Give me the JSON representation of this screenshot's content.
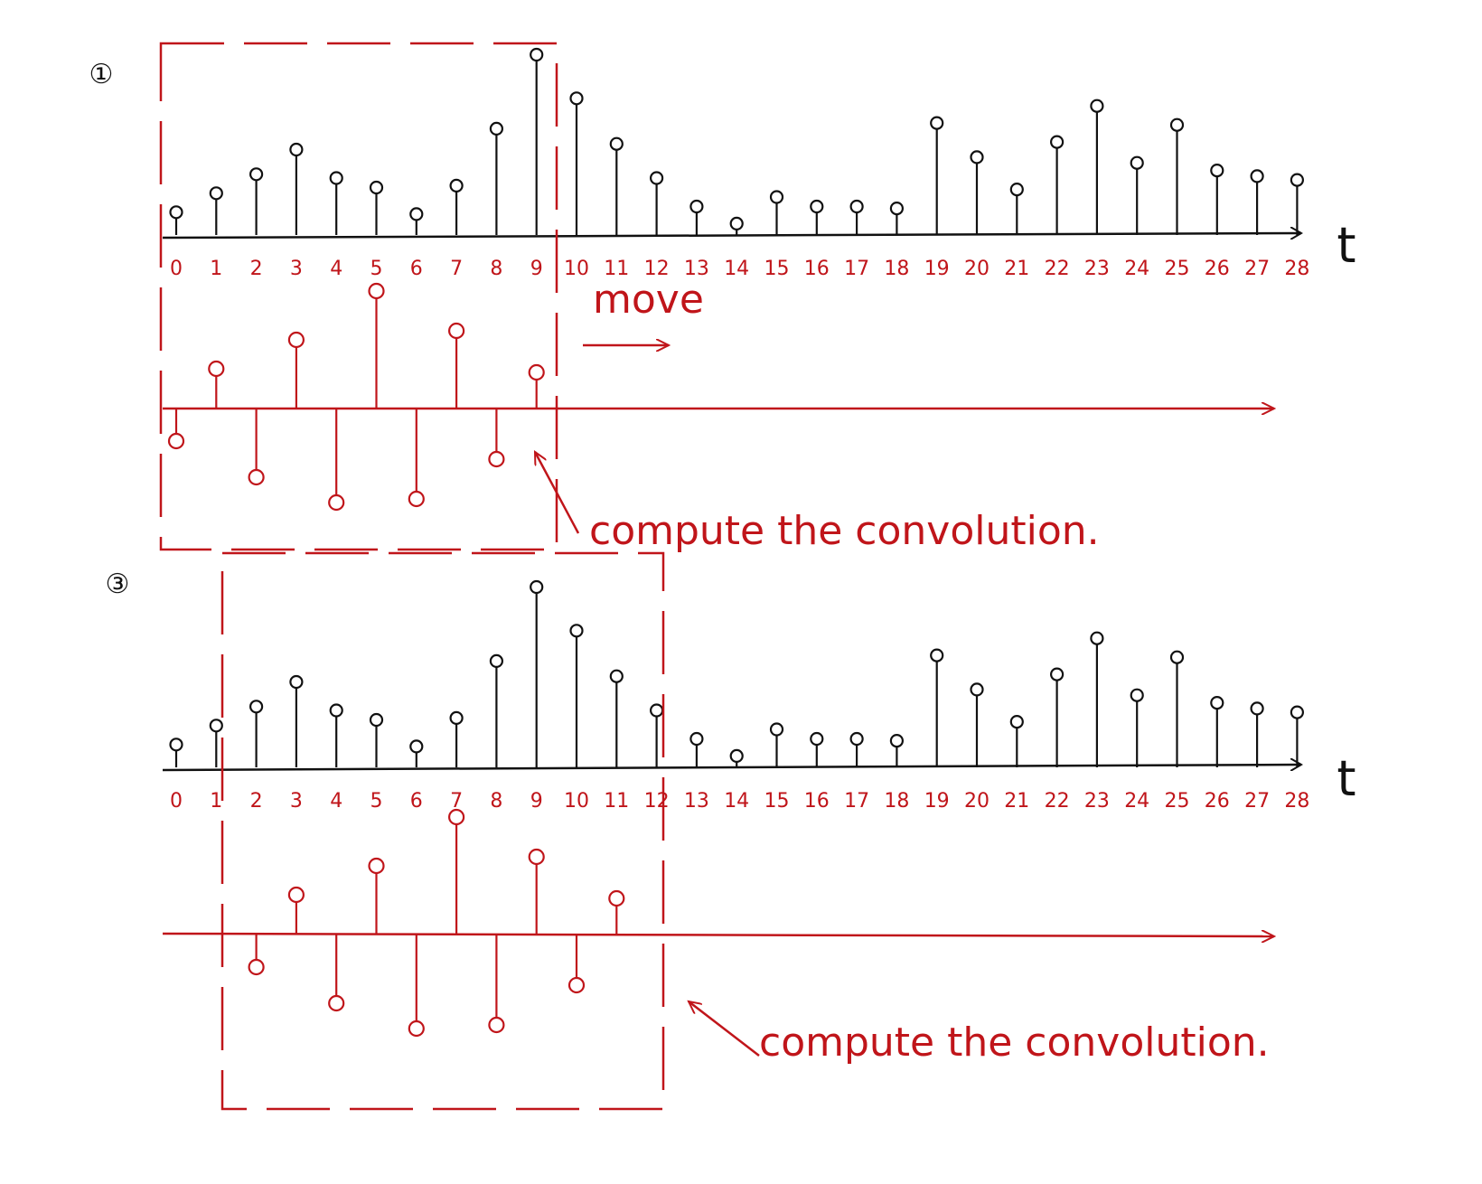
{
  "colors": {
    "signal": "#111111",
    "kernel": "#c0151a"
  },
  "signal_heights": [
    0.12,
    0.22,
    0.32,
    0.45,
    0.3,
    0.25,
    0.11,
    0.26,
    0.56,
    0.95,
    0.72,
    0.48,
    0.3,
    0.15,
    0.06,
    0.2,
    0.15,
    0.15,
    0.14,
    0.59,
    0.41,
    0.24,
    0.49,
    0.68,
    0.38,
    0.58,
    0.34,
    0.31,
    0.29
  ],
  "kernel_taps": [
    -0.18,
    0.22,
    -0.38,
    0.38,
    -0.52,
    0.65,
    -0.5,
    0.43,
    -0.28,
    0.2
  ],
  "panels": [
    {
      "number": "①",
      "tick_labels": [
        "0",
        "1",
        "2",
        "3",
        "4",
        "5",
        "6",
        "7",
        "8",
        "9",
        "10",
        "11",
        "12",
        "13",
        "14",
        "15",
        "16",
        "17",
        "18",
        "19",
        "20",
        "21",
        "22",
        "23",
        "24",
        "25",
        "26",
        "27",
        "28"
      ],
      "axis_label": "t",
      "window_start": 0,
      "window_end": 10,
      "move_label": "move",
      "annotation": "compute the convolution."
    },
    {
      "number": "③",
      "tick_labels": [
        "0",
        "1",
        "2",
        "3",
        "4",
        "5",
        "6",
        "7",
        "8",
        "9",
        "10",
        "11",
        "12",
        "13",
        "14",
        "15",
        "16",
        "17",
        "18",
        "19",
        "20",
        "21",
        "22",
        "23",
        "24",
        "25",
        "26",
        "27",
        "28"
      ],
      "axis_label": "t",
      "window_start": 2,
      "window_end": 12,
      "annotation": "compute the convolution."
    }
  ]
}
